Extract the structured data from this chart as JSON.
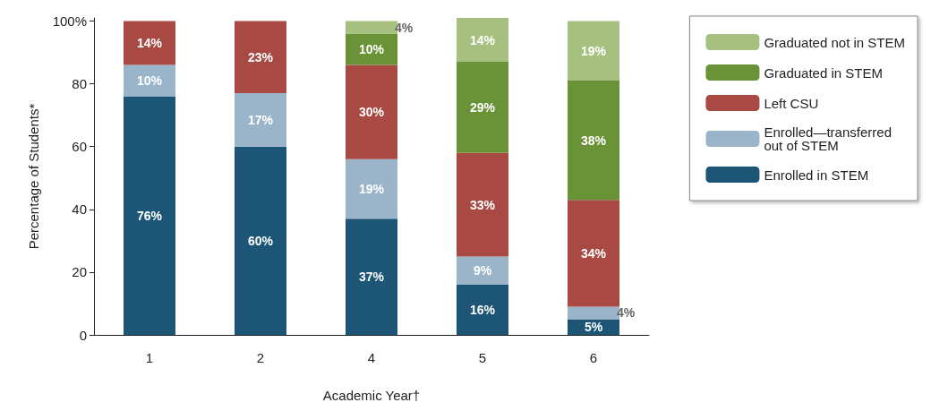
{
  "chart_data": {
    "type": "bar",
    "stacked": true,
    "xlabel": "Academic Year†",
    "ylabel": "Percentage of Students*",
    "categories": [
      "1",
      "2",
      "4",
      "5",
      "6"
    ],
    "series": [
      {
        "name": "Enrolled in STEM",
        "color": "#1c5576",
        "values": [
          76,
          60,
          37,
          16,
          5
        ],
        "value_labels": [
          "76%",
          "60%",
          "37%",
          "16%",
          "5%"
        ]
      },
      {
        "name": "Enrolled—transferred out of STEM",
        "color": "#9ab5c9",
        "values": [
          10,
          17,
          19,
          9,
          4
        ],
        "value_labels": [
          "10%",
          "17%",
          "19%",
          "9%",
          "4%"
        ]
      },
      {
        "name": "Left CSU",
        "color": "#a84a43",
        "values": [
          14,
          23,
          30,
          33,
          34
        ],
        "value_labels": [
          "14%",
          "23%",
          "30%",
          "33%",
          "34%"
        ]
      },
      {
        "name": "Graduated in STEM",
        "color": "#6a9237",
        "values": [
          null,
          null,
          10,
          29,
          38
        ],
        "value_labels": [
          null,
          null,
          "10%",
          "29%",
          "38%"
        ]
      },
      {
        "name": "Graduated not in STEM",
        "color": "#a6c080",
        "values": [
          null,
          null,
          4,
          14,
          19
        ],
        "value_labels": [
          null,
          null,
          "4%",
          "14%",
          "19%"
        ]
      }
    ],
    "ylim": [
      0,
      101
    ],
    "yticks": [
      0,
      20,
      40,
      60,
      80,
      {
        "value": 100,
        "label": "100%"
      }
    ],
    "grid": false,
    "legend": "right"
  }
}
